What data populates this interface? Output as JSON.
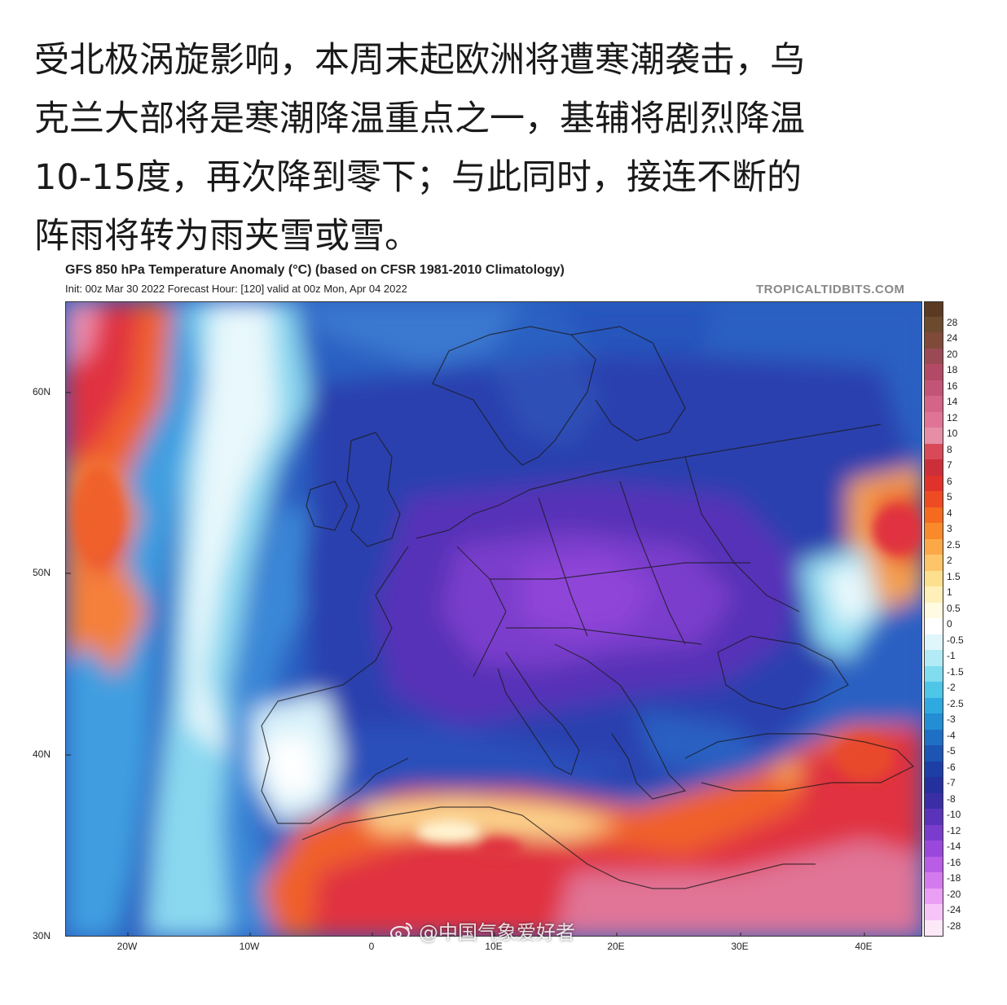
{
  "post": {
    "lines": [
      "受北极涡旋影响，本周末起欧洲将遭寒潮袭击，乌",
      "克兰大部将是寒潮降温重点之一，基辅将剧烈降温",
      "10-15度，再次降到零下；与此同时，接连不断的",
      "阵雨将转为雨夹雪或雪。"
    ]
  },
  "map": {
    "title": "GFS 850 hPa Temperature Anomaly (°C) (based on CFSR 1981-2010 Climatology)",
    "subtitle": "Init: 00z Mar 30 2022   Forecast Hour: [120]   valid at 00z Mon, Apr 04 2022",
    "credit": "TROPICALTIDBITS.COM",
    "latitude_labels": [
      "60N",
      "50N",
      "40N",
      "30N"
    ],
    "longitude_labels": [
      "20W",
      "10W",
      "0",
      "10E",
      "20E",
      "30E",
      "40E"
    ],
    "colorbar": {
      "labels": [
        "28",
        "24",
        "20",
        "18",
        "16",
        "14",
        "12",
        "10",
        "8",
        "7",
        "6",
        "5",
        "4",
        "3",
        "2.5",
        "2",
        "1.5",
        "1",
        "0.5",
        "0",
        "-0.5",
        "-1",
        "-1.5",
        "-2",
        "-2.5",
        "-3",
        "-4",
        "-5",
        "-6",
        "-7",
        "-8",
        "-10",
        "-12",
        "-14",
        "-16",
        "-18",
        "-20",
        "-24",
        "-28"
      ],
      "colors": [
        "#6b4a2e",
        "#7f4a3a",
        "#9a4a55",
        "#b24a66",
        "#c25577",
        "#d46488",
        "#e07497",
        "#e58ea6",
        "#d84a5a",
        "#cc2f3a",
        "#e0322b",
        "#ee4b23",
        "#f56a1f",
        "#f88a2c",
        "#fba848",
        "#fdc468",
        "#fde08e",
        "#fef0b8",
        "#fffbe2",
        "#ffffff",
        "#dff6fb",
        "#b2ebf6",
        "#80dcef",
        "#4ec6e8",
        "#2eaae0",
        "#238ed4",
        "#1e70c4",
        "#1c55b4",
        "#1d3ea6",
        "#24309e",
        "#3a2ea6",
        "#5a33ba",
        "#7a3ccc",
        "#9a48dc",
        "#b95ce6",
        "#d57aee",
        "#ea9ef4",
        "#f6c4f6",
        "#fde8f8"
      ],
      "icons": "gradient-bar"
    }
  },
  "watermark": {
    "text": "@中国气象爱好者",
    "icon": "weibo-icon"
  }
}
